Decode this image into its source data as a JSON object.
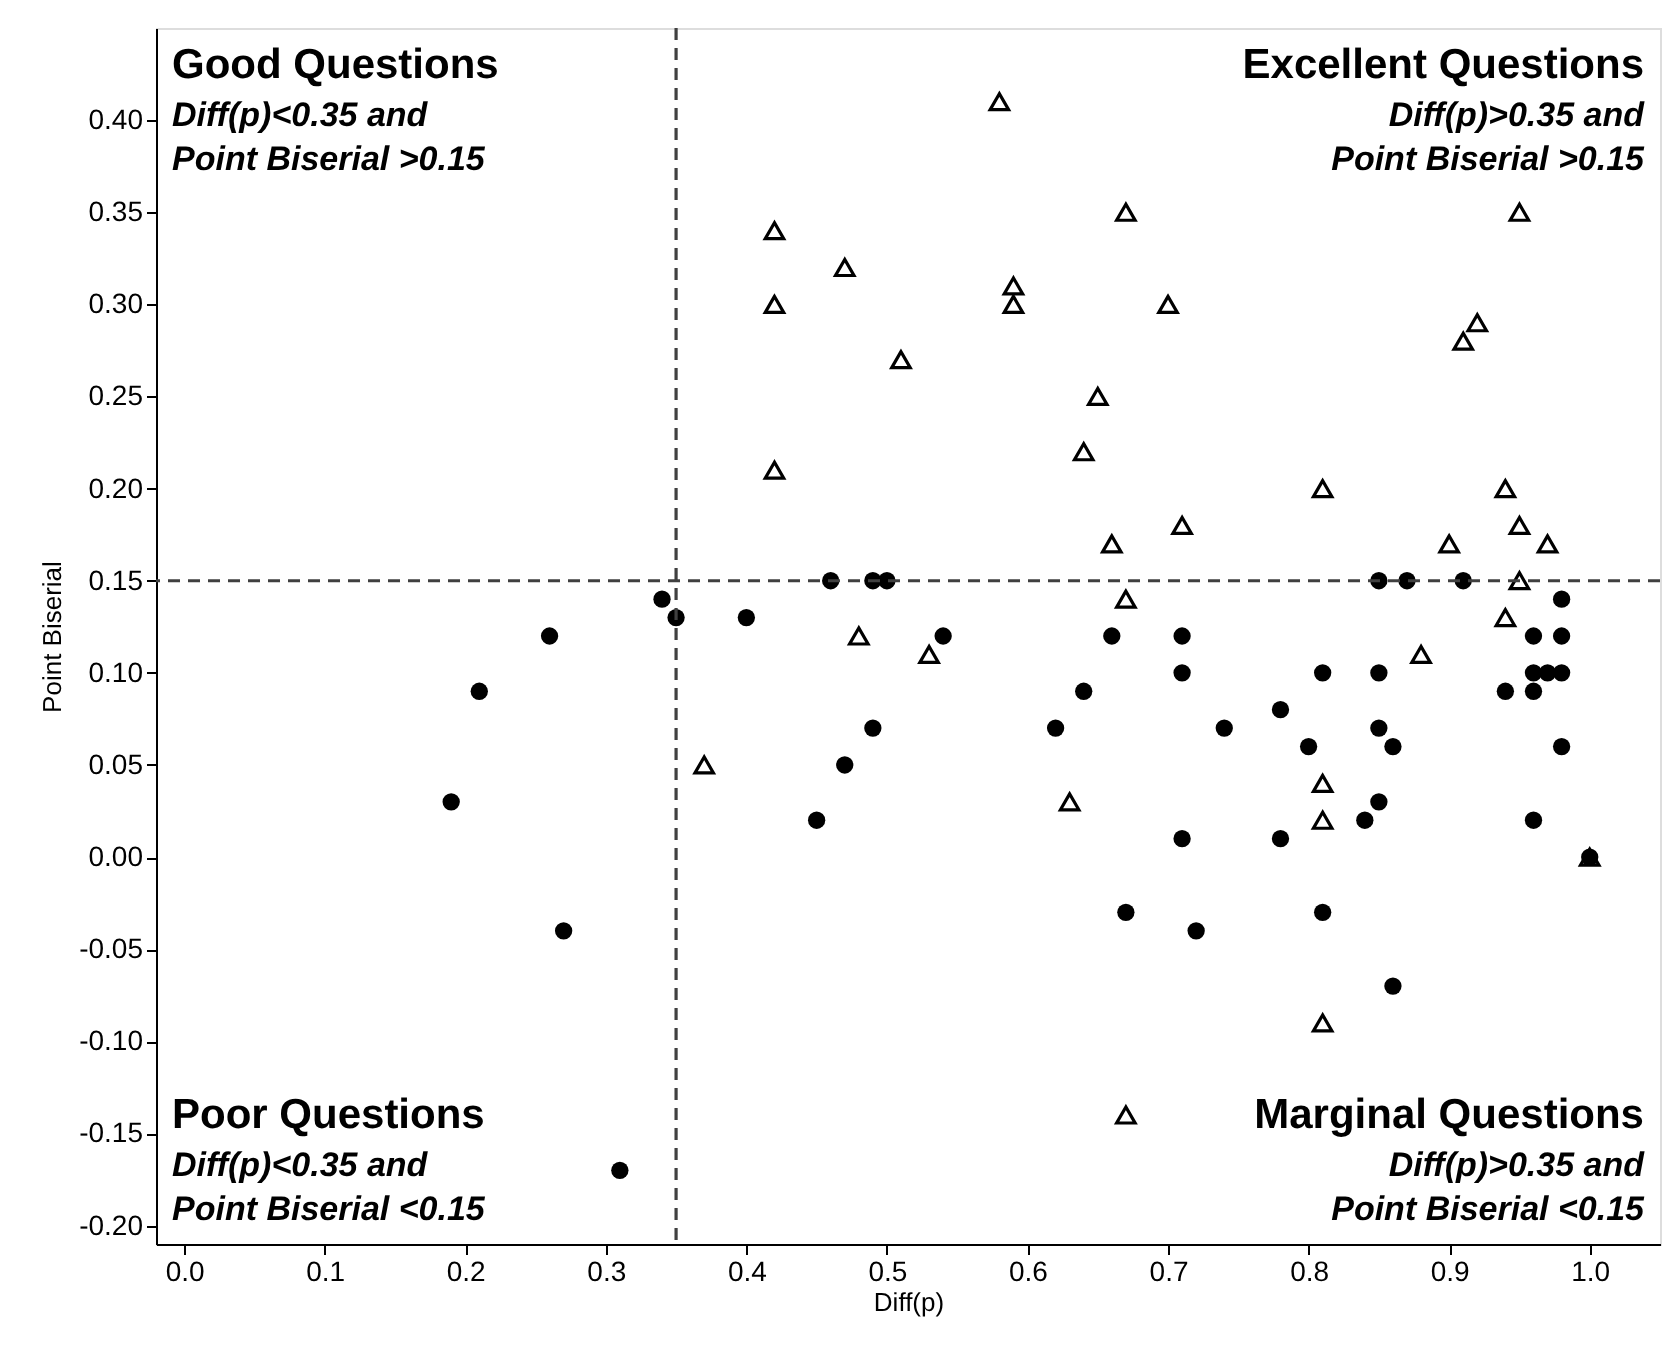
{
  "chart_data": {
    "type": "scatter",
    "xlabel": "Diff(p)",
    "ylabel": "Point Biserial",
    "xlim": [
      -0.02,
      1.05
    ],
    "ylim": [
      -0.21,
      0.45
    ],
    "xticks": [
      {
        "value": 0,
        "label": "0.0"
      },
      {
        "value": 0.1,
        "label": "0.1"
      },
      {
        "value": 0.2,
        "label": "0.2"
      },
      {
        "value": 0.3,
        "label": "0.3"
      },
      {
        "value": 0.4,
        "label": "0.4"
      },
      {
        "value": 0.5,
        "label": "0.5"
      },
      {
        "value": 0.6,
        "label": "0.6"
      },
      {
        "value": 0.7,
        "label": "0.7"
      },
      {
        "value": 0.8,
        "label": "0.8"
      },
      {
        "value": 0.9,
        "label": "0.9"
      },
      {
        "value": 1,
        "label": "1.0"
      }
    ],
    "yticks": [
      {
        "value": -0.2,
        "label": "-0.20"
      },
      {
        "value": -0.15,
        "label": "-0.15"
      },
      {
        "value": -0.1,
        "label": "-0.10"
      },
      {
        "value": -0.05,
        "label": "-0.05"
      },
      {
        "value": 0,
        "label": "0.00"
      },
      {
        "value": 0.05,
        "label": "0.05"
      },
      {
        "value": 0.1,
        "label": "0.10"
      },
      {
        "value": 0.15,
        "label": "0.15"
      },
      {
        "value": 0.2,
        "label": "0.20"
      },
      {
        "value": 0.25,
        "label": "0.25"
      },
      {
        "value": 0.3,
        "label": "0.30"
      },
      {
        "value": 0.35,
        "label": "0.35"
      },
      {
        "value": 0.4,
        "label": "0.40"
      }
    ],
    "grid": false,
    "series": [
      {
        "color": "#000000",
        "marker": "circle",
        "x": [
          0.19,
          0.21,
          0.26,
          0.27,
          0.31,
          0.34,
          0.35,
          0.4,
          0.45,
          0.46,
          0.47,
          0.49,
          0.49,
          0.5,
          0.54,
          0.66,
          0.71,
          0.71,
          0.64,
          0.62,
          0.74,
          0.78,
          0.8,
          0.81,
          0.85,
          0.85,
          0.86,
          0.85,
          0.84,
          0.78,
          0.71,
          0.67,
          0.72,
          0.81,
          0.86,
          0.85,
          0.87,
          0.91,
          0.98,
          0.96,
          0.98,
          0.96,
          0.97,
          0.98,
          0.94,
          0.96,
          0.98,
          0.96,
          1.0
        ],
        "values": [
          0.03,
          0.09,
          0.12,
          -0.04,
          -0.17,
          0.14,
          0.13,
          0.13,
          0.02,
          0.15,
          0.05,
          0.07,
          0.15,
          0.15,
          0.12,
          0.12,
          0.12,
          0.1,
          0.09,
          0.07,
          0.07,
          0.08,
          0.06,
          0.1,
          0.1,
          0.07,
          0.06,
          0.03,
          0.02,
          0.01,
          0.01,
          -0.03,
          -0.04,
          -0.03,
          -0.07,
          0.15,
          0.15,
          0.15,
          0.14,
          0.12,
          0.12,
          0.1,
          0.1,
          0.1,
          0.09,
          0.09,
          0.06,
          0.02,
          0.0
        ]
      },
      {
        "color": "#000000",
        "marker": "triangle",
        "x": [
          0.37,
          0.48,
          0.53,
          0.67,
          0.94,
          0.88,
          0.95,
          0.63,
          0.81,
          0.81,
          0.81,
          0.67,
          1.0,
          0.42,
          0.42,
          0.42,
          0.47,
          0.51,
          0.58,
          0.67,
          0.59,
          0.59,
          0.7,
          0.65,
          0.64,
          0.81,
          0.71,
          0.66,
          0.95,
          0.92,
          0.91,
          0.94,
          0.95,
          0.9,
          0.97
        ],
        "values": [
          0.05,
          0.12,
          0.11,
          0.14,
          0.13,
          0.11,
          0.15,
          0.03,
          0.04,
          0.02,
          -0.09,
          -0.14,
          0.0,
          0.34,
          0.3,
          0.21,
          0.32,
          0.27,
          0.41,
          0.35,
          0.31,
          0.3,
          0.3,
          0.25,
          0.22,
          0.2,
          0.18,
          0.17,
          0.35,
          0.29,
          0.28,
          0.2,
          0.18,
          0.17,
          0.17
        ]
      }
    ],
    "ref_lines": [
      {
        "axis": "x",
        "value": 0.35,
        "color": "#404040",
        "line_style": "dashed"
      },
      {
        "axis": "y",
        "value": 0.15,
        "color": "#404040",
        "line_style": "dashed"
      }
    ],
    "annotations": [
      "Good Questions",
      "Diff(p)<0.35 and\nPoint Biserial >0.15",
      "Excellent Questions",
      "Diff(p)>0.35 and\nPoint Biserial >0.15",
      "Poor Questions",
      "Diff(p)<0.35 and\nPoint Biserial <0.15",
      "Marginal Questions",
      "Diff(p)>0.35 and\nPoint Biserial <0.15"
    ]
  }
}
